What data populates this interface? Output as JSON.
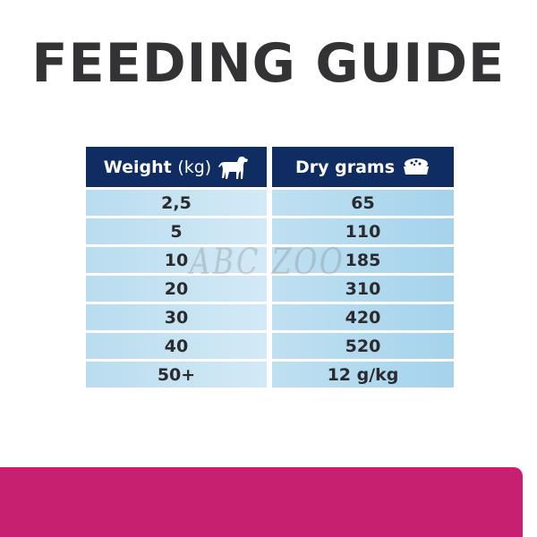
{
  "title": "FEEDING GUIDE",
  "table": {
    "headers": {
      "weight_bold": "Weight",
      "weight_unit": "(kg)",
      "weight_icon": "dog-icon",
      "dry": "Dry grams",
      "dry_icon": "food-bowl-icon"
    },
    "weights": [
      "2,5",
      "5",
      "10",
      "20",
      "30",
      "40",
      "50+"
    ],
    "grams": [
      "65",
      "110",
      "185",
      "310",
      "420",
      "520",
      "12 g/kg"
    ]
  },
  "watermark": "ABC ZOO",
  "colors": {
    "header": "#0f2c63",
    "accent_band": "#c82070",
    "title": "#333335"
  }
}
